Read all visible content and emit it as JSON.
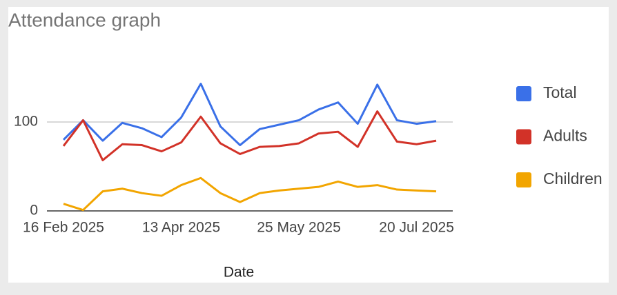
{
  "chart_data": {
    "type": "line",
    "title": "Attendance graph",
    "x_label": "Date",
    "categories": [
      "16 Feb 2025",
      null,
      null,
      null,
      null,
      null,
      "13 Apr 2025",
      null,
      null,
      null,
      null,
      null,
      "25 May 2025",
      null,
      null,
      null,
      null,
      null,
      "20 Jul 2025",
      null
    ],
    "series": [
      {
        "name": "Total",
        "color": "#3a70e8",
        "values": [
          80,
          102,
          79,
          99,
          93,
          83,
          105,
          143,
          95,
          74,
          92,
          97,
          102,
          114,
          122,
          98,
          142,
          102,
          98,
          101
        ]
      },
      {
        "name": "Adults",
        "color": "#d23228",
        "values": [
          73,
          102,
          57,
          75,
          74,
          67,
          77,
          106,
          76,
          64,
          72,
          73,
          76,
          87,
          89,
          72,
          112,
          78,
          75,
          79
        ]
      },
      {
        "name": "Children",
        "color": "#f2a500",
        "values": [
          8,
          1,
          22,
          25,
          20,
          17,
          29,
          37,
          20,
          10,
          20,
          23,
          25,
          27,
          33,
          27,
          29,
          24,
          23,
          22
        ]
      }
    ],
    "ylim": [
      0,
      150
    ],
    "yticks": [
      0,
      100
    ],
    "grid": true,
    "legend": "right"
  }
}
